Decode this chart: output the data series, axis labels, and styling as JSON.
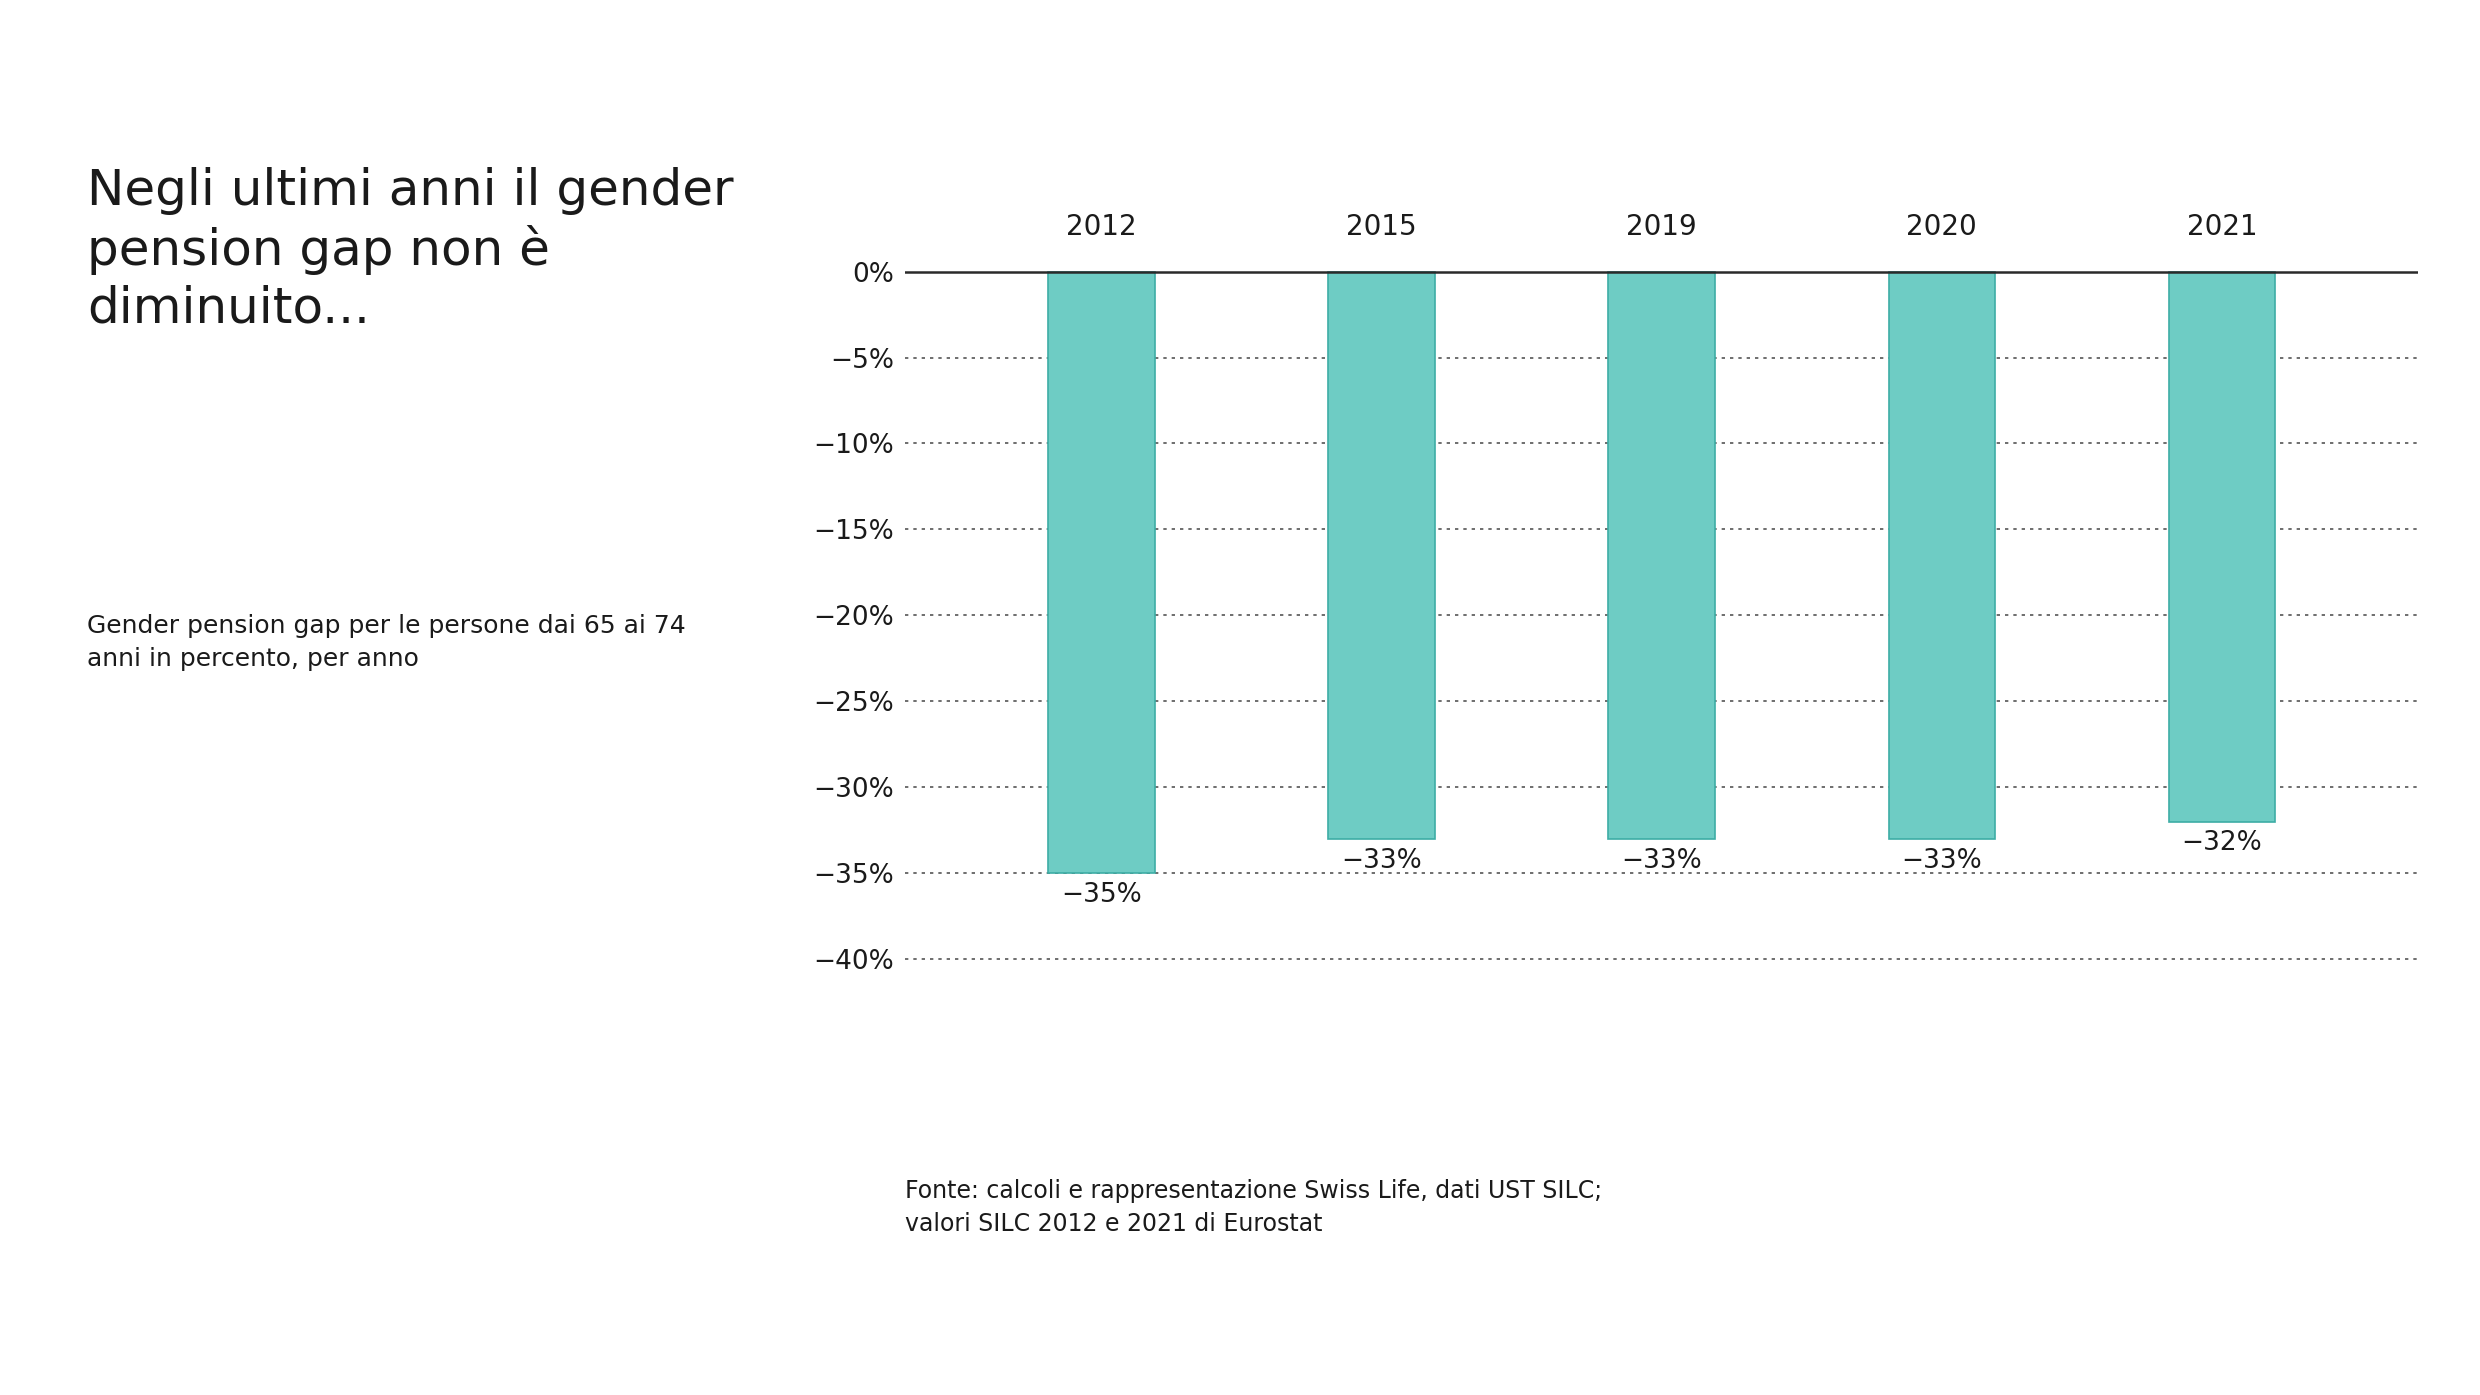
{
  "title": "Negli ultimi anni il gender\npension gap non è\ndiminuito...",
  "subtitle": "Gender pension gap per le persone dai 65 ai 74\nanni in percento, per anno",
  "footnote": "Fonte: calcoli e rappresentazione Swiss Life, dati UST SILC;\nvalori SILC 2012 e 2021 di Eurostat",
  "years": [
    "2012",
    "2015",
    "2019",
    "2020",
    "2021"
  ],
  "values": [
    -35,
    -33,
    -33,
    -33,
    -32
  ],
  "bar_color": "#6ECCC4",
  "bar_edge_color": "#3dada5",
  "background_color": "#FFFFFF",
  "text_color": "#1a1a1a",
  "ylim": [
    -41,
    2
  ],
  "yticks": [
    0,
    -5,
    -10,
    -15,
    -20,
    -25,
    -30,
    -35,
    -40
  ],
  "ytick_labels": [
    "0%",
    "−5%",
    "−10%",
    "−15%",
    "−20%",
    "−25%",
    "−30%",
    "−35%",
    "−40%"
  ],
  "value_labels": [
    "−35%",
    "−33%",
    "−33%",
    "−33%",
    "−32%"
  ],
  "title_fontsize": 36,
  "subtitle_fontsize": 18,
  "footnote_fontsize": 17,
  "tick_fontsize": 19,
  "year_fontsize": 20,
  "value_label_fontsize": 19
}
